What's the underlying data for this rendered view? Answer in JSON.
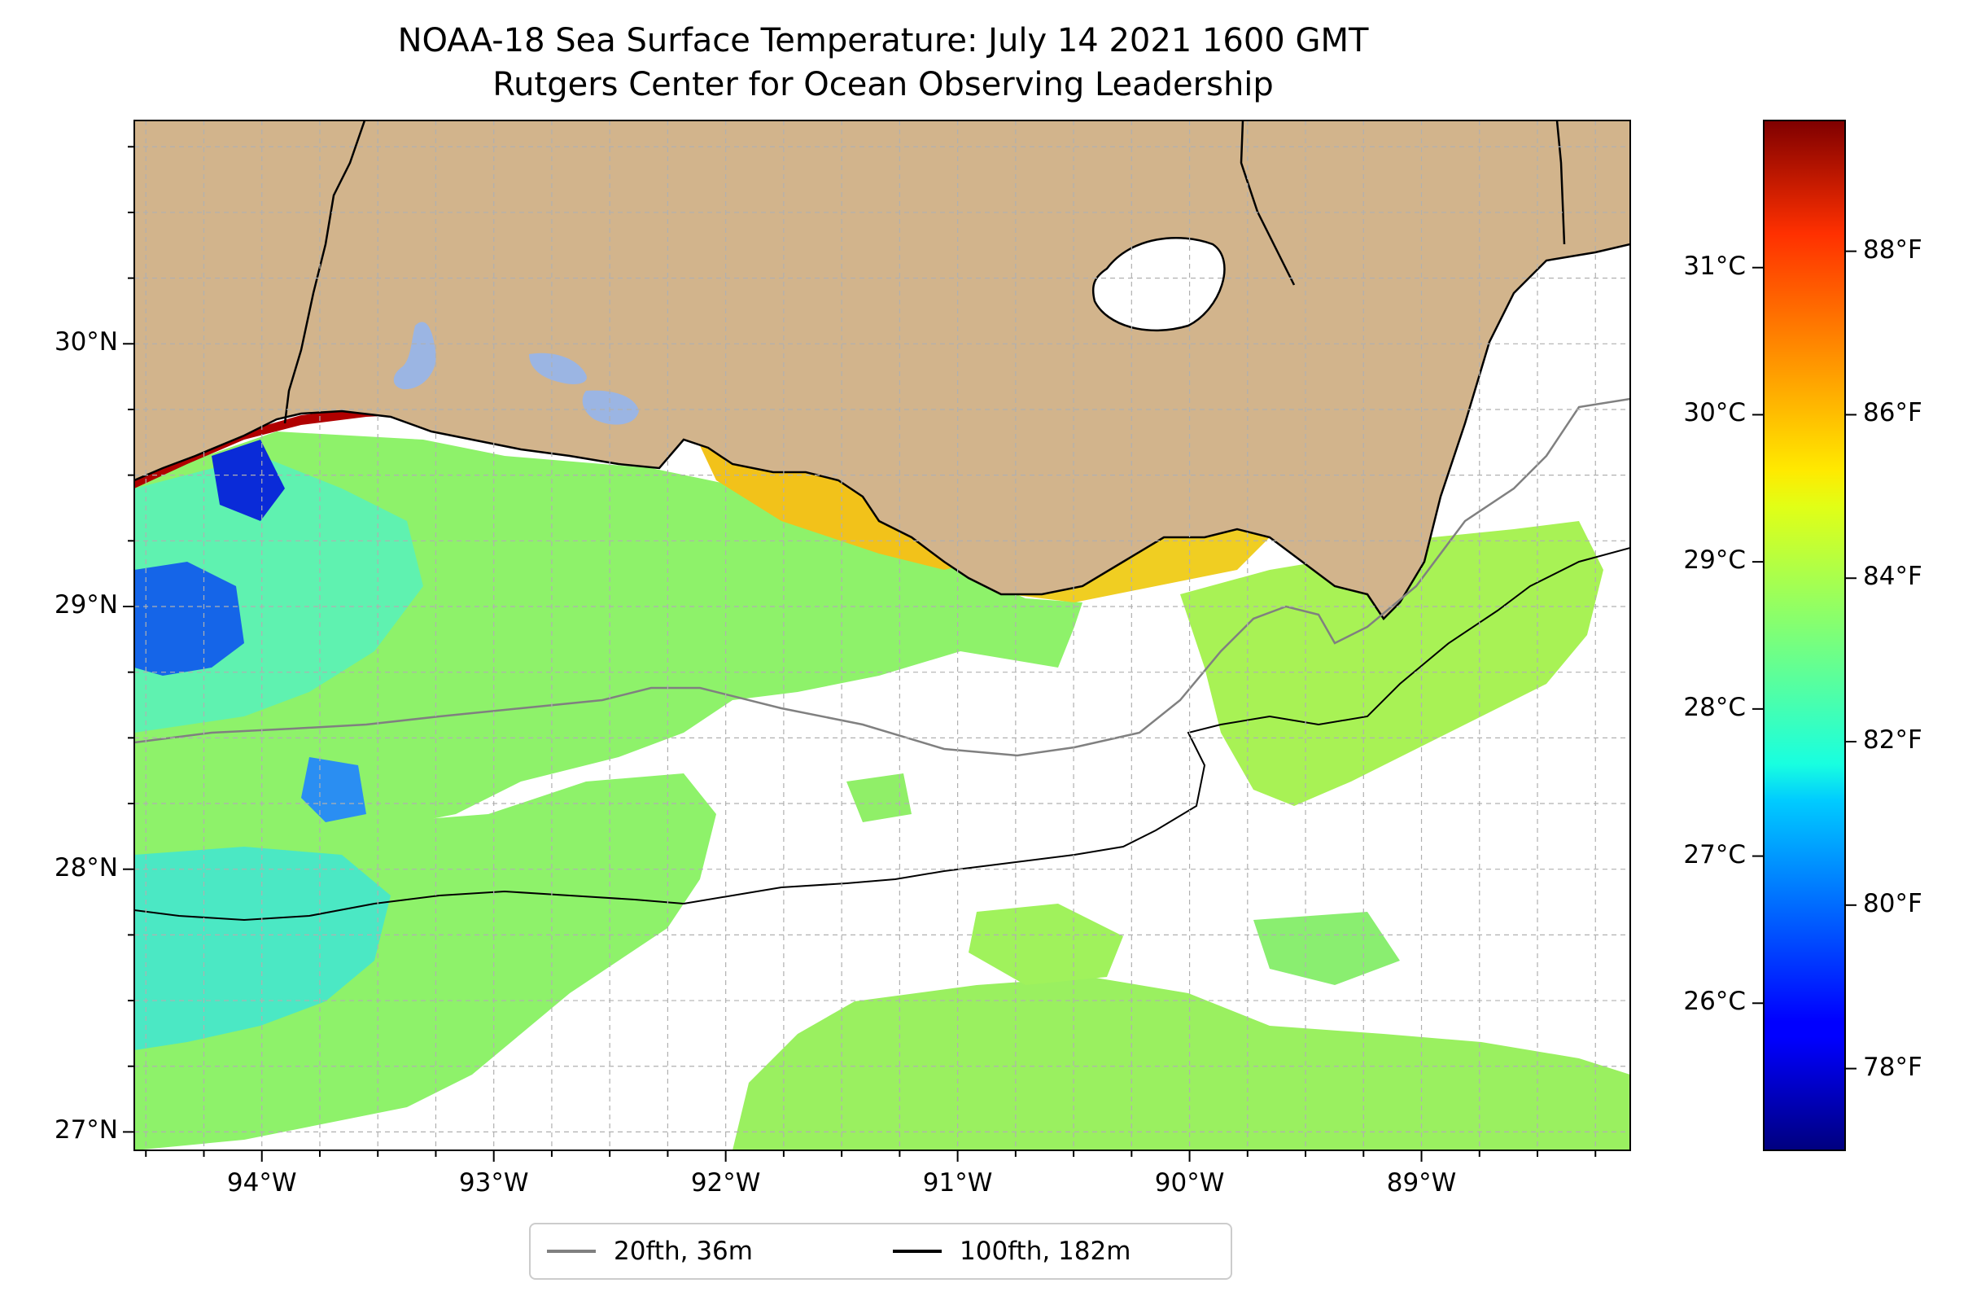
{
  "title": {
    "line1": "NOAA-18 Sea Surface Temperature: July 14 2021 1600 GMT",
    "line2": "Rutgers Center for Ocean Observing Leadership"
  },
  "colors": {
    "land": "#d2b48c",
    "lakes": "#9bb5e3",
    "grid": "#b0b0b0",
    "coastline": "#000000",
    "isobath_20fth": "#808080",
    "isobath_100fth": "#000000",
    "background": "#ffffff"
  },
  "map": {
    "lon_range": [
      -94.55,
      -88.1
    ],
    "lat_range": [
      26.93,
      30.85
    ],
    "lat_ticks": [
      {
        "value": 27,
        "label": "27°N"
      },
      {
        "value": 28,
        "label": "28°N"
      },
      {
        "value": 29,
        "label": "29°N"
      },
      {
        "value": 30,
        "label": "30°N"
      }
    ],
    "lon_ticks": [
      {
        "value": -94,
        "label": "94°W"
      },
      {
        "value": -93,
        "label": "93°W"
      },
      {
        "value": -92,
        "label": "92°W"
      },
      {
        "value": -91,
        "label": "91°W"
      },
      {
        "value": -90,
        "label": "90°W"
      },
      {
        "value": -89,
        "label": "89°W"
      }
    ],
    "grid": true,
    "grid_style": "dashed"
  },
  "colorbar": {
    "colormap": "jet",
    "range_c": [
      25.0,
      32.0
    ],
    "celsius_ticks": [
      {
        "value": 26,
        "label": "26°C"
      },
      {
        "value": 27,
        "label": "27°C"
      },
      {
        "value": 28,
        "label": "28°C"
      },
      {
        "value": 29,
        "label": "29°C"
      },
      {
        "value": 30,
        "label": "30°C"
      },
      {
        "value": 31,
        "label": "31°C"
      }
    ],
    "fahrenheit_ticks": [
      {
        "value": 78,
        "label": "78°F"
      },
      {
        "value": 80,
        "label": "80°F"
      },
      {
        "value": 82,
        "label": "82°F"
      },
      {
        "value": 84,
        "label": "84°F"
      },
      {
        "value": 86,
        "label": "86°F"
      },
      {
        "value": 88,
        "label": "88°F"
      }
    ]
  },
  "legend": {
    "placement": "bottom-center",
    "entries": [
      {
        "label": "20fth, 36m",
        "color": "#808080"
      },
      {
        "label": "100fth, 182m",
        "color": "#000000"
      }
    ]
  },
  "chart_data": {
    "type": "heatmap",
    "variable": "sea surface temperature",
    "units": "°C",
    "title": "NOAA-18 Sea Surface Temperature: July 14 2021 1600 GMT",
    "subtitle": "Rutgers Center for Ocean Observing Leadership",
    "xlim": [
      -94.55,
      -88.1
    ],
    "ylim": [
      26.93,
      30.85
    ],
    "value_range": [
      25.0,
      32.0
    ],
    "typical_offshore_value": 28.3,
    "nearshore_max_value": 31.5,
    "legend": [
      "20fth, 36m",
      "100fth, 182m"
    ]
  }
}
